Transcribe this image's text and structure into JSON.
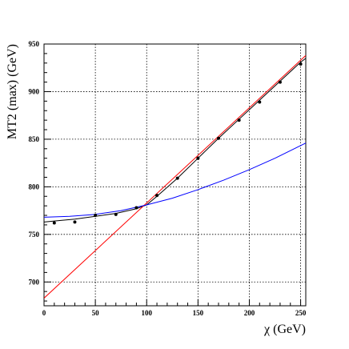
{
  "chart_data": {
    "type": "scatter",
    "title": "",
    "xlabel": "χ (GeV)",
    "ylabel": "MT2 (max)  (GeV)",
    "xlim": [
      0,
      255
    ],
    "ylim": [
      675,
      950
    ],
    "grid": true,
    "x_ticks": [
      0,
      50,
      100,
      150,
      200,
      250
    ],
    "x_tick_labels": [
      "0",
      "50",
      "100",
      "150",
      "200",
      "250"
    ],
    "y_ticks": [
      700,
      750,
      800,
      850,
      900,
      950
    ],
    "y_tick_labels": [
      "700",
      "750",
      "800",
      "850",
      "900",
      "950"
    ],
    "points": {
      "x": [
        10,
        30,
        50,
        70,
        90,
        110,
        130,
        150,
        170,
        190,
        210,
        230,
        250
      ],
      "y": [
        762,
        763,
        770,
        771,
        778,
        791,
        809,
        830,
        851,
        870,
        889,
        910,
        929
      ]
    },
    "curves": [
      {
        "color": "#000000",
        "x": [
          0,
          10,
          30,
          50,
          70,
          90,
          100,
          110,
          130,
          150,
          170,
          190,
          210,
          230,
          250,
          255
        ],
        "y": [
          763,
          764,
          766,
          769,
          772,
          777,
          781,
          790,
          809,
          830,
          851,
          871,
          891,
          911,
          931,
          935
        ]
      },
      {
        "color": "#ff0000",
        "x": [
          0,
          255
        ],
        "y": [
          683,
          938
        ]
      },
      {
        "color": "#0000ff",
        "x": [
          0,
          25,
          50,
          75,
          100,
          125,
          150,
          175,
          200,
          225,
          255
        ],
        "y": [
          768,
          769,
          771,
          775,
          781,
          788,
          797,
          807,
          818,
          830,
          846
        ]
      }
    ]
  }
}
